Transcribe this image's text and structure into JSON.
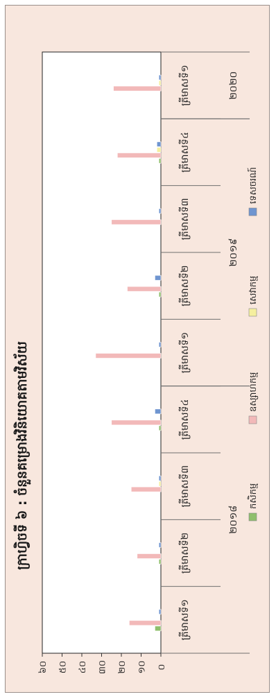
{
  "chart_data": {
    "type": "bar",
    "orientation": "horizontal",
    "rotated": "90deg-clockwise",
    "title": "ក្រាហ្វិចទី ៦ : ចំនួនគម្រោងវិនិយោគតាមវិស័យ",
    "ylim": [
      0,
      60
    ],
    "yticks": [
      "០",
      "១០",
      "២០",
      "៣០",
      "៤០",
      "៥០",
      "៦០"
    ],
    "ytick_values": [
      0,
      10,
      20,
      30,
      40,
      50,
      60
    ],
    "grid": false,
    "legend_position": "bottom",
    "years": [
      {
        "label": "២០១៨",
        "span": [
          0,
          4
        ]
      },
      {
        "label": "២០១៩",
        "span": [
          4,
          8
        ]
      },
      {
        "label": "២០២០",
        "span": [
          8,
          9
        ]
      }
    ],
    "categories": [
      "ត្រីមាសទី១",
      "ត្រីមាសទី២",
      "ត្រីមាសទី៣",
      "ត្រីមាសទី៤",
      "ត្រីមាសទី១",
      "ត្រីមាសទី២",
      "ត្រីមាសទី៣",
      "ត្រីមាសទី៤",
      "ត្រីមាសទី១"
    ],
    "series": [
      {
        "name": "កសិកម្ម",
        "color": "#8fbf6c",
        "values": [
          3,
          1,
          0,
          1,
          0,
          1,
          0,
          1,
          0
        ]
      },
      {
        "name": "ឧស្សាហកម្ម",
        "color": "#f2b9b9",
        "values": [
          16,
          12,
          15,
          25,
          33,
          17,
          25,
          22,
          24
        ]
      },
      {
        "name": "សេវាកម្ម",
        "color": "#f5ef9f",
        "values": [
          0,
          0,
          1,
          0,
          0,
          0,
          0,
          2,
          1
        ]
      },
      {
        "name": "ទេសចរណ៍",
        "color": "#6f95d0",
        "values": [
          1,
          1,
          1,
          3,
          1,
          3,
          1,
          2,
          1
        ]
      }
    ]
  }
}
